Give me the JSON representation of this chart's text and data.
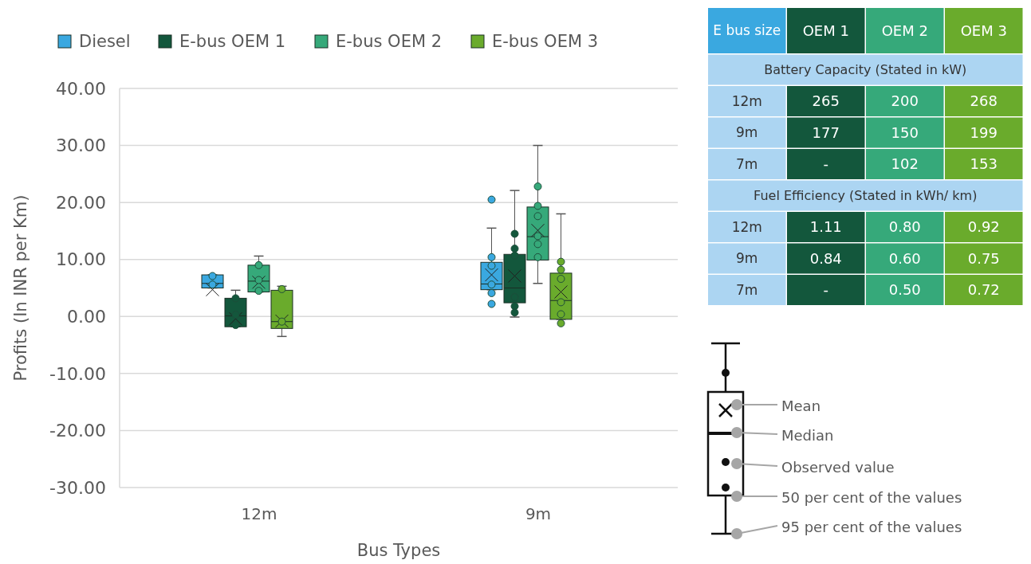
{
  "chart_data": [
    {
      "type": "box",
      "xlabel": "Bus Types",
      "ylabel": "Profits (In INR per Km)",
      "categories": [
        "12m",
        "9m"
      ],
      "ylim": [
        -30,
        40
      ],
      "yticks": [
        {
          "value": -30,
          "label": "-30.00"
        },
        {
          "value": -20,
          "label": "-20.00"
        },
        {
          "value": -10,
          "label": "-10.00"
        },
        {
          "value": 0,
          "label": "0.00"
        },
        {
          "value": 10,
          "label": "10.00"
        },
        {
          "value": 20,
          "label": "20.00"
        },
        {
          "value": 30,
          "label": "30.00"
        },
        {
          "value": 40,
          "label": "40.00"
        }
      ],
      "grid": "y",
      "legend": "top left",
      "marker": "circle",
      "series": [
        {
          "name": "Diesel",
          "color": "#3aa8e0",
          "boxes": [
            {
              "low": 5.0,
              "q1": 5.0,
              "median": 5.8,
              "q3": 7.3,
              "high": 7.3,
              "mean": 4.7,
              "outliers": [
                7.1,
                5.6
              ]
            },
            {
              "low": 4.7,
              "q1": 4.7,
              "median": 5.7,
              "q3": 9.5,
              "high": 15.5,
              "mean": 7.3,
              "outliers": [
                20.5,
                10.4,
                8.9,
                5.6,
                4.1,
                2.2
              ]
            }
          ]
        },
        {
          "name": "E-bus OEM 1",
          "color": "#13573c",
          "boxes": [
            {
              "low": -1.8,
              "q1": -1.8,
              "median": 0.1,
              "q3": 3.2,
              "high": 4.6,
              "mean": -0.4,
              "outliers": [
                3.2,
                0.3,
                -1.5
              ]
            },
            {
              "low": -0.1,
              "q1": 2.4,
              "median": 5.0,
              "q3": 10.9,
              "high": 22.1,
              "mean": 7.1,
              "outliers": [
                14.5,
                11.9,
                10.7,
                3.4,
                1.8,
                0.7
              ]
            }
          ]
        },
        {
          "name": "E-bus OEM 2",
          "color": "#36a97a",
          "boxes": [
            {
              "low": 4.3,
              "q1": 4.3,
              "median": 6.2,
              "q3": 9.0,
              "high": 10.6,
              "mean": 6.0,
              "outliers": [
                9.0,
                6.4,
                4.5
              ]
            },
            {
              "low": 5.8,
              "q1": 9.9,
              "median": 14.0,
              "q3": 19.2,
              "high": 30.0,
              "mean": 15.1,
              "outliers": [
                22.8,
                19.4,
                17.6,
                14.1,
                12.7,
                10.4
              ]
            }
          ]
        },
        {
          "name": "E-bus OEM 3",
          "color": "#6aab2c",
          "boxes": [
            {
              "low": -3.5,
              "q1": -2.1,
              "median": -0.9,
              "q3": 4.6,
              "high": 5.3,
              "mean": -0.8,
              "outliers": [
                4.8,
                -0.9
              ]
            },
            {
              "low": -0.5,
              "q1": -0.5,
              "median": 2.8,
              "q3": 7.6,
              "high": 18.0,
              "mean": 4.3,
              "outliers": [
                9.6,
                8.2,
                6.6,
                2.5,
                0.4,
                -1.2
              ]
            }
          ]
        }
      ]
    },
    {
      "type": "other",
      "categories": [
        "E bus size",
        "OEM 1",
        "OEM 2",
        "OEM 3"
      ],
      "colors": [
        "#3aa8e0",
        "#13573c",
        "#36a97a",
        "#6aab2c"
      ],
      "y_categories": [
        "Battery Capacity (Stated in kW)",
        "12m",
        "9m",
        "7m",
        "Fuel Efficiency (Stated in kWh/ km)",
        "12m",
        "9m",
        "7m"
      ],
      "cell_labels": [
        null,
        [
          "265",
          "200",
          "268"
        ],
        [
          "177",
          "150",
          "199"
        ],
        [
          "-",
          "102",
          "153"
        ],
        null,
        [
          "1.11",
          "0.80",
          "0.92"
        ],
        [
          "0.84",
          "0.60",
          "0.75"
        ],
        [
          "-",
          "0.50",
          "0.72"
        ]
      ]
    },
    {
      "type": "other",
      "annotations": [
        "Mean",
        "Median",
        "Observed value",
        "50 per cent of the values",
        "95 per cent of the values"
      ]
    }
  ]
}
